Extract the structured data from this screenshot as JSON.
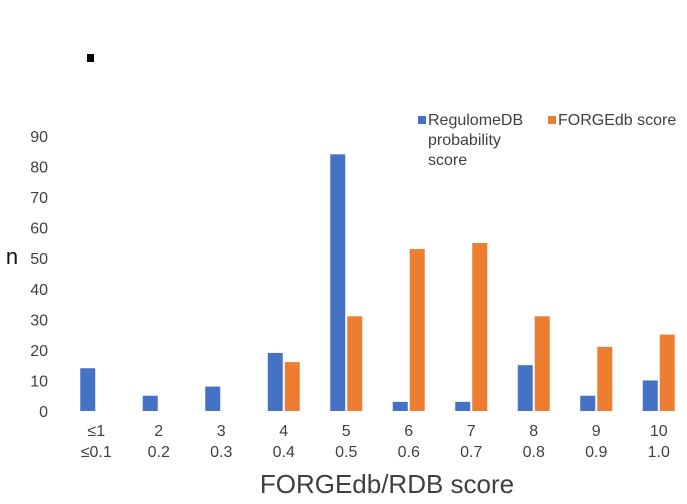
{
  "chart_data": {
    "type": "bar",
    "categories": [
      "≤1|≤0.1",
      "2|0.2",
      "3|0.3",
      "4|0.4",
      "5|0.5",
      "6|0.6",
      "7|0.7",
      "8|0.8",
      "9|0.9",
      "10|1.0"
    ],
    "category_lines": [
      [
        "≤1",
        "≤0.1"
      ],
      [
        "2",
        "0.2"
      ],
      [
        "3",
        "0.3"
      ],
      [
        "4",
        "0.4"
      ],
      [
        "5",
        "0.5"
      ],
      [
        "6",
        "0.6"
      ],
      [
        "7",
        "0.7"
      ],
      [
        "8",
        "0.8"
      ],
      [
        "9",
        "0.9"
      ],
      [
        "10",
        "1.0"
      ]
    ],
    "series": [
      {
        "name": "RegulomeDB probability score",
        "name_lines": [
          "RegulomeDB",
          "probability",
          "score"
        ],
        "color": "#4472c4",
        "values": [
          14,
          5,
          8,
          19,
          84,
          3,
          3,
          15,
          5,
          10
        ]
      },
      {
        "name": "FORGEdb score",
        "name_lines": [
          "FORGEdb score"
        ],
        "color": "#ed7d31",
        "values": [
          0,
          0,
          0,
          16,
          31,
          53,
          55,
          31,
          21,
          25
        ]
      }
    ],
    "xlabel": "FORGEdb/RDB score",
    "ylabel": "n",
    "ylim": [
      0,
      90
    ],
    "yticks": [
      0,
      10,
      20,
      30,
      40,
      50,
      60,
      70,
      80,
      90
    ],
    "grid": false,
    "legend_position": "top-right"
  }
}
